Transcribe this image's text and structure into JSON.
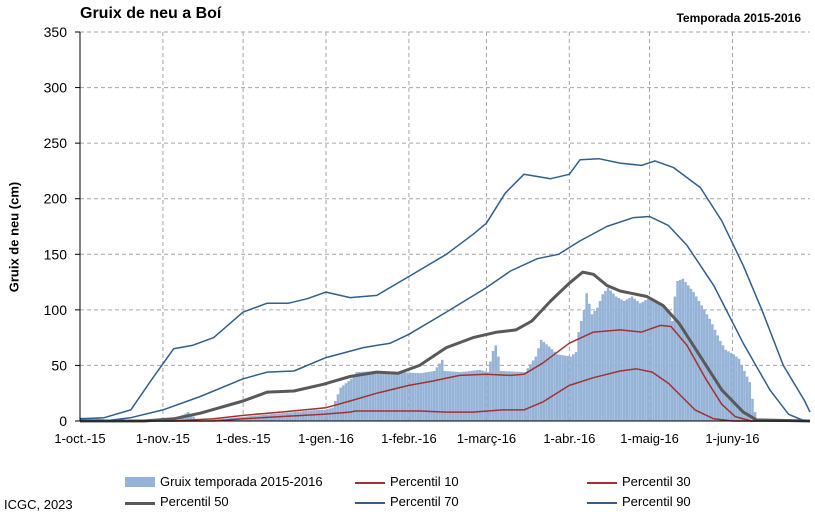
{
  "title": "Gruix de neu a Boí",
  "season_label": "Temporada 2015-2016",
  "credit": "ICGC, 2023",
  "colors": {
    "bars": "#95b3d7",
    "p10": "#a2322f",
    "p30": "#a2322f",
    "p50": "#595959",
    "p70": "#2f5f8f",
    "p90": "#2f5f8f",
    "grid": "#a6a6a6"
  },
  "chart_data": {
    "type": "bar",
    "title": "Gruix de neu a Boí",
    "ylabel": "Gruix de neu (cm)",
    "xlabel": "",
    "ylim": [
      0,
      350
    ],
    "yticks": [
      0,
      50,
      100,
      150,
      200,
      250,
      300,
      350
    ],
    "x_range": [
      "2015-10-01",
      "2016-06-30"
    ],
    "x_ticks": [
      {
        "date": "2015-10-01",
        "label": "1-oct.-15"
      },
      {
        "date": "2015-11-01",
        "label": "1-nov.-15"
      },
      {
        "date": "2015-12-01",
        "label": "1-des.-15"
      },
      {
        "date": "2016-01-01",
        "label": "1-gen.-16"
      },
      {
        "date": "2016-02-01",
        "label": "1-febr.-16"
      },
      {
        "date": "2016-03-01",
        "label": "1-març-16"
      },
      {
        "date": "2016-04-01",
        "label": "1-abr.-16"
      },
      {
        "date": "2016-05-01",
        "label": "1-maig-16"
      },
      {
        "date": "2016-06-01",
        "label": "1-juny-16"
      }
    ],
    "grid": true,
    "legend_position": "bottom",
    "bar_series": {
      "name": "Gruix temporada 2015-2016",
      "points": [
        [
          "2015-10-01",
          3
        ],
        [
          "2015-10-08",
          2
        ],
        [
          "2015-10-15",
          0
        ],
        [
          "2015-11-06",
          3
        ],
        [
          "2015-11-10",
          8
        ],
        [
          "2015-11-14",
          0
        ],
        [
          "2015-12-28",
          10
        ],
        [
          "2015-12-31",
          10
        ],
        [
          "2016-01-03",
          12
        ],
        [
          "2016-01-06",
          30
        ],
        [
          "2016-01-10",
          38
        ],
        [
          "2016-01-12",
          44
        ],
        [
          "2016-01-20",
          45
        ],
        [
          "2016-01-28",
          44
        ],
        [
          "2016-02-05",
          43
        ],
        [
          "2016-02-10",
          45
        ],
        [
          "2016-02-13",
          55
        ],
        [
          "2016-02-14",
          45
        ],
        [
          "2016-02-20",
          44
        ],
        [
          "2016-02-27",
          46
        ],
        [
          "2016-03-01",
          44
        ],
        [
          "2016-03-03",
          63
        ],
        [
          "2016-03-04",
          68
        ],
        [
          "2016-03-05",
          58
        ],
        [
          "2016-03-06",
          45
        ],
        [
          "2016-03-15",
          44
        ],
        [
          "2016-03-19",
          58
        ],
        [
          "2016-03-21",
          73
        ],
        [
          "2016-03-24",
          67
        ],
        [
          "2016-03-27",
          60
        ],
        [
          "2016-04-01",
          58
        ],
        [
          "2016-04-03",
          62
        ],
        [
          "2016-04-04",
          80
        ],
        [
          "2016-04-06",
          100
        ],
        [
          "2016-04-07",
          115
        ],
        [
          "2016-04-09",
          96
        ],
        [
          "2016-04-11",
          102
        ],
        [
          "2016-04-13",
          114
        ],
        [
          "2016-04-15",
          120
        ],
        [
          "2016-04-18",
          112
        ],
        [
          "2016-04-21",
          108
        ],
        [
          "2016-04-24",
          112
        ],
        [
          "2016-04-27",
          106
        ],
        [
          "2016-04-30",
          110
        ],
        [
          "2016-05-03",
          108
        ],
        [
          "2016-05-06",
          104
        ],
        [
          "2016-05-08",
          98
        ],
        [
          "2016-05-09",
          90
        ],
        [
          "2016-05-10",
          112
        ],
        [
          "2016-05-11",
          126
        ],
        [
          "2016-05-13",
          128
        ],
        [
          "2016-05-15",
          122
        ],
        [
          "2016-05-17",
          116
        ],
        [
          "2016-05-19",
          108
        ],
        [
          "2016-05-21",
          100
        ],
        [
          "2016-05-23",
          92
        ],
        [
          "2016-05-25",
          82
        ],
        [
          "2016-05-27",
          72
        ],
        [
          "2016-05-29",
          64
        ],
        [
          "2016-06-01",
          60
        ],
        [
          "2016-06-03",
          56
        ],
        [
          "2016-06-05",
          45
        ],
        [
          "2016-06-07",
          35
        ],
        [
          "2016-06-08",
          20
        ],
        [
          "2016-06-09",
          8
        ],
        [
          "2016-06-10",
          0
        ]
      ]
    },
    "line_series": [
      {
        "name": "Percentil 10",
        "key": "p10",
        "width": 1.5,
        "points": [
          [
            "2015-10-01",
            0
          ],
          [
            "2015-11-20",
            0
          ],
          [
            "2015-12-01",
            2
          ],
          [
            "2015-12-15",
            4
          ],
          [
            "2015-12-31",
            6
          ],
          [
            "2016-01-10",
            8
          ],
          [
            "2016-01-12",
            9
          ],
          [
            "2016-02-05",
            9
          ],
          [
            "2016-02-15",
            8
          ],
          [
            "2016-02-25",
            8
          ],
          [
            "2016-03-07",
            10
          ],
          [
            "2016-03-15",
            10
          ],
          [
            "2016-03-22",
            17
          ],
          [
            "2016-04-01",
            32
          ],
          [
            "2016-04-10",
            39
          ],
          [
            "2016-04-20",
            45
          ],
          [
            "2016-04-26",
            47
          ],
          [
            "2016-05-02",
            44
          ],
          [
            "2016-05-08",
            34
          ],
          [
            "2016-05-13",
            22
          ],
          [
            "2016-05-18",
            10
          ],
          [
            "2016-05-25",
            2
          ],
          [
            "2016-06-01",
            0
          ],
          [
            "2016-06-30",
            0
          ]
        ]
      },
      {
        "name": "Percentil 30",
        "key": "p30",
        "width": 1.5,
        "points": [
          [
            "2015-10-01",
            0
          ],
          [
            "2015-11-05",
            0
          ],
          [
            "2015-11-20",
            2
          ],
          [
            "2015-12-01",
            5
          ],
          [
            "2015-12-15",
            8
          ],
          [
            "2016-01-01",
            12
          ],
          [
            "2016-01-10",
            18
          ],
          [
            "2016-01-20",
            25
          ],
          [
            "2016-02-01",
            32
          ],
          [
            "2016-02-10",
            36
          ],
          [
            "2016-02-20",
            41
          ],
          [
            "2016-03-01",
            42
          ],
          [
            "2016-03-10",
            41
          ],
          [
            "2016-03-15",
            42
          ],
          [
            "2016-03-22",
            52
          ],
          [
            "2016-04-01",
            70
          ],
          [
            "2016-04-10",
            80
          ],
          [
            "2016-04-20",
            82
          ],
          [
            "2016-04-28",
            80
          ],
          [
            "2016-05-05",
            86
          ],
          [
            "2016-05-09",
            85
          ],
          [
            "2016-05-15",
            68
          ],
          [
            "2016-05-22",
            38
          ],
          [
            "2016-05-28",
            15
          ],
          [
            "2016-06-02",
            4
          ],
          [
            "2016-06-08",
            0
          ],
          [
            "2016-06-30",
            0
          ]
        ]
      },
      {
        "name": "Percentil 50",
        "key": "p50",
        "width": 3,
        "points": [
          [
            "2015-10-01",
            0
          ],
          [
            "2015-10-25",
            0
          ],
          [
            "2015-11-05",
            2
          ],
          [
            "2015-11-15",
            7
          ],
          [
            "2015-12-01",
            18
          ],
          [
            "2015-12-10",
            26
          ],
          [
            "2015-12-20",
            27
          ],
          [
            "2015-12-31",
            33
          ],
          [
            "2016-01-10",
            40
          ],
          [
            "2016-01-20",
            44
          ],
          [
            "2016-01-28",
            43
          ],
          [
            "2016-02-05",
            50
          ],
          [
            "2016-02-15",
            66
          ],
          [
            "2016-02-25",
            75
          ],
          [
            "2016-03-05",
            80
          ],
          [
            "2016-03-12",
            82
          ],
          [
            "2016-03-18",
            90
          ],
          [
            "2016-03-25",
            108
          ],
          [
            "2016-04-01",
            124
          ],
          [
            "2016-04-06",
            134
          ],
          [
            "2016-04-10",
            132
          ],
          [
            "2016-04-15",
            122
          ],
          [
            "2016-04-20",
            117
          ],
          [
            "2016-04-30",
            112
          ],
          [
            "2016-05-06",
            104
          ],
          [
            "2016-05-12",
            88
          ],
          [
            "2016-05-20",
            58
          ],
          [
            "2016-05-28",
            28
          ],
          [
            "2016-06-05",
            8
          ],
          [
            "2016-06-10",
            1
          ],
          [
            "2016-06-30",
            0
          ]
        ]
      },
      {
        "name": "Percentil 70",
        "key": "p70",
        "width": 1.5,
        "points": [
          [
            "2015-10-01",
            0
          ],
          [
            "2015-10-10",
            0
          ],
          [
            "2015-10-20",
            3
          ],
          [
            "2015-11-01",
            10
          ],
          [
            "2015-11-15",
            22
          ],
          [
            "2015-12-01",
            38
          ],
          [
            "2015-12-10",
            44
          ],
          [
            "2015-12-20",
            45
          ],
          [
            "2016-01-01",
            57
          ],
          [
            "2016-01-15",
            66
          ],
          [
            "2016-01-25",
            70
          ],
          [
            "2016-02-01",
            78
          ],
          [
            "2016-02-15",
            98
          ],
          [
            "2016-03-01",
            120
          ],
          [
            "2016-03-10",
            135
          ],
          [
            "2016-03-20",
            146
          ],
          [
            "2016-03-28",
            150
          ],
          [
            "2016-04-05",
            162
          ],
          [
            "2016-04-15",
            175
          ],
          [
            "2016-04-25",
            183
          ],
          [
            "2016-05-01",
            184
          ],
          [
            "2016-05-08",
            176
          ],
          [
            "2016-05-15",
            158
          ],
          [
            "2016-05-25",
            122
          ],
          [
            "2016-06-05",
            70
          ],
          [
            "2016-06-15",
            28
          ],
          [
            "2016-06-22",
            6
          ],
          [
            "2016-06-28",
            0
          ],
          [
            "2016-06-30",
            0
          ]
        ]
      },
      {
        "name": "Percentil 90",
        "key": "p90",
        "width": 1.5,
        "points": [
          [
            "2015-10-01",
            2
          ],
          [
            "2015-10-10",
            3
          ],
          [
            "2015-10-20",
            10
          ],
          [
            "2015-10-28",
            38
          ],
          [
            "2015-11-05",
            65
          ],
          [
            "2015-11-12",
            68
          ],
          [
            "2015-11-20",
            75
          ],
          [
            "2015-12-01",
            98
          ],
          [
            "2015-12-10",
            106
          ],
          [
            "2015-12-18",
            106
          ],
          [
            "2015-12-25",
            110
          ],
          [
            "2016-01-01",
            116
          ],
          [
            "2016-01-10",
            111
          ],
          [
            "2016-01-20",
            113
          ],
          [
            "2016-02-01",
            130
          ],
          [
            "2016-02-15",
            150
          ],
          [
            "2016-02-25",
            168
          ],
          [
            "2016-03-01",
            178
          ],
          [
            "2016-03-08",
            205
          ],
          [
            "2016-03-15",
            222
          ],
          [
            "2016-03-25",
            218
          ],
          [
            "2016-04-01",
            222
          ],
          [
            "2016-04-05",
            235
          ],
          [
            "2016-04-12",
            236
          ],
          [
            "2016-04-20",
            232
          ],
          [
            "2016-04-28",
            230
          ],
          [
            "2016-05-03",
            234
          ],
          [
            "2016-05-10",
            228
          ],
          [
            "2016-05-20",
            210
          ],
          [
            "2016-05-28",
            180
          ],
          [
            "2016-06-05",
            140
          ],
          [
            "2016-06-12",
            100
          ],
          [
            "2016-06-20",
            50
          ],
          [
            "2016-06-28",
            18
          ],
          [
            "2016-06-30",
            8
          ]
        ]
      }
    ],
    "legend": [
      {
        "label": "Gruix temporada 2015-2016",
        "key": "bars",
        "kind": "bar"
      },
      {
        "label": "Percentil 10",
        "key": "p10",
        "kind": "line"
      },
      {
        "label": "Percentil 30",
        "key": "p30",
        "kind": "line"
      },
      {
        "label": "Percentil 50",
        "key": "p50",
        "kind": "line-thick"
      },
      {
        "label": "Percentil 70",
        "key": "p70",
        "kind": "line"
      },
      {
        "label": "Percentil 90",
        "key": "p90",
        "kind": "line"
      }
    ]
  }
}
